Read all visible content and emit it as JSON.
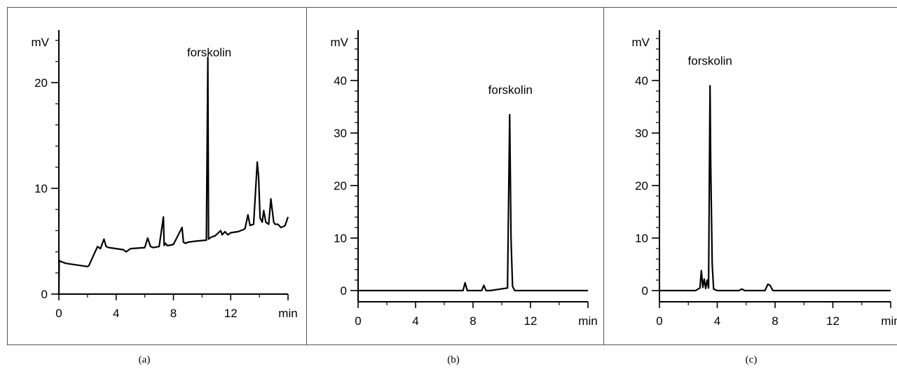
{
  "chart_data": [
    {
      "type": "line",
      "panel_label": "(a)",
      "y_unit": "mV",
      "x_unit": "min",
      "xlim": [
        0,
        16
      ],
      "ylim": [
        -0.8,
        25
      ],
      "x_ticks": [
        0,
        4,
        8,
        12
      ],
      "y_ticks": [
        0,
        10,
        20
      ],
      "y_minor_step": 2,
      "annotation": {
        "text": "forskolin",
        "x": 10.5,
        "y": 22.5
      },
      "series": [
        {
          "x": [
            0,
            0.02,
            0.1,
            0.5,
            1.0,
            1.5,
            2.0,
            2.1,
            2.7,
            2.9,
            3.15,
            3.3,
            3.5,
            4.0,
            4.5,
            4.7,
            5.0,
            6.0,
            6.2,
            6.4,
            6.6,
            7.0,
            7.3,
            7.35,
            7.45,
            7.55,
            7.7,
            8.0,
            8.6,
            8.7,
            8.85,
            9.0,
            9.5,
            10.3,
            10.4,
            10.45,
            10.55,
            10.65,
            10.9,
            11.3,
            11.4,
            11.6,
            11.8,
            12.0,
            12.5,
            12.9,
            13.0,
            13.2,
            13.35,
            13.6,
            13.85,
            13.95,
            14.05,
            14.2,
            14.3,
            14.45,
            14.65,
            14.8,
            15.0,
            15.1,
            15.3,
            15.5,
            15.7,
            15.8,
            16.0
          ],
          "y": [
            0,
            3.2,
            3.1,
            2.9,
            2.8,
            2.7,
            2.6,
            2.7,
            4.5,
            4.3,
            5.2,
            4.5,
            4.4,
            4.3,
            4.2,
            4.0,
            4.3,
            4.4,
            5.3,
            4.5,
            4.4,
            4.5,
            7.3,
            4.6,
            4.8,
            4.6,
            4.6,
            4.7,
            6.3,
            4.9,
            4.8,
            4.9,
            5.0,
            5.1,
            22.4,
            5.2,
            5.3,
            5.4,
            5.5,
            6.0,
            5.6,
            5.9,
            5.6,
            5.8,
            5.9,
            6.1,
            6.2,
            7.5,
            6.5,
            6.6,
            12.5,
            11.0,
            7.2,
            6.8,
            7.9,
            6.8,
            6.6,
            9.0,
            6.8,
            6.6,
            6.6,
            6.3,
            6.4,
            6.5,
            7.3
          ]
        }
      ]
    },
    {
      "type": "line",
      "panel_label": "(b)",
      "y_unit": "mV",
      "x_unit": "min",
      "xlim": [
        0,
        16
      ],
      "ylim": [
        -2,
        50
      ],
      "x_ticks": [
        0,
        4,
        8,
        12
      ],
      "y_ticks": [
        0,
        10,
        20,
        30,
        40
      ],
      "y_minor_step": 2,
      "annotation": {
        "text": "forskolin",
        "x": 10.6,
        "y": 37.5
      },
      "series": [
        {
          "x": [
            0,
            6.5,
            7.3,
            7.45,
            7.6,
            7.8,
            8.6,
            8.75,
            8.9,
            9.2,
            10.4,
            10.55,
            10.65,
            10.75,
            10.9,
            11.5,
            16
          ],
          "y": [
            0,
            0,
            0,
            1.5,
            0,
            0,
            0,
            1.0,
            0,
            0,
            0.5,
            33.5,
            9.5,
            0.8,
            0,
            0,
            0
          ]
        }
      ]
    },
    {
      "type": "line",
      "panel_label": "(c)",
      "y_unit": "mV",
      "x_unit": "min",
      "xlim": [
        0,
        16
      ],
      "ylim": [
        -2,
        50
      ],
      "x_ticks": [
        0,
        4,
        8,
        12
      ],
      "y_ticks": [
        0,
        10,
        20,
        30,
        40
      ],
      "y_minor_step": 2,
      "annotation": {
        "text": "forskolin",
        "x": 3.5,
        "y": 43
      },
      "series": [
        {
          "x": [
            0,
            2.5,
            2.8,
            2.9,
            3.0,
            3.1,
            3.2,
            3.3,
            3.4,
            3.5,
            3.55,
            3.65,
            3.75,
            4.0,
            5.5,
            5.7,
            5.9,
            7.3,
            7.5,
            7.65,
            7.85,
            16
          ],
          "y": [
            0,
            0,
            0.5,
            3.8,
            0.6,
            2.2,
            0.4,
            2.0,
            0.5,
            39,
            24,
            5,
            0.3,
            0,
            0,
            0.3,
            0,
            0,
            1.2,
            1.0,
            0,
            0
          ]
        }
      ]
    }
  ]
}
